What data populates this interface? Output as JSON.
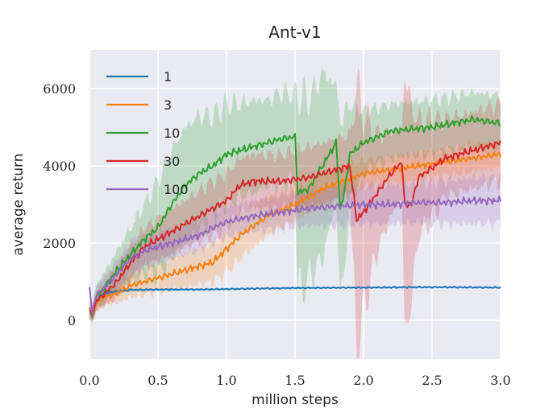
{
  "chart_data": {
    "type": "line",
    "title": "Ant-v1",
    "xlabel": "million steps",
    "ylabel": "average return",
    "xlim": [
      0,
      3.0
    ],
    "ylim": [
      -1000,
      7000
    ],
    "x_ticks": [
      0.0,
      0.5,
      1.0,
      1.5,
      2.0,
      2.5,
      3.0
    ],
    "x_tick_labels": [
      "0.0",
      "0.5",
      "1.0",
      "1.5",
      "2.0",
      "2.5",
      "3.0"
    ],
    "y_ticks": [
      0,
      2000,
      4000,
      6000
    ],
    "y_tick_labels": [
      "0",
      "2000",
      "4000",
      "6000"
    ],
    "grid": true,
    "legend_position": "top-left",
    "series": [
      {
        "name": "1",
        "color": "#1f77b4",
        "x": [
          0,
          0.02,
          0.05,
          0.1,
          0.2,
          0.3,
          0.5,
          0.8,
          1.0,
          1.5,
          2.0,
          2.5,
          3.0
        ],
        "y": [
          300,
          100,
          500,
          700,
          750,
          790,
          800,
          800,
          810,
          840,
          850,
          860,
          850
        ],
        "spread": [
          80,
          80,
          80,
          70,
          50,
          40,
          30,
          25,
          25,
          25,
          25,
          25,
          25
        ]
      },
      {
        "name": "3",
        "color": "#ff7f0e",
        "x": [
          0,
          0.02,
          0.05,
          0.1,
          0.2,
          0.3,
          0.5,
          0.7,
          0.9,
          1.0,
          1.1,
          1.3,
          1.5,
          1.7,
          2.0,
          2.3,
          2.5,
          2.8,
          3.0
        ],
        "y": [
          300,
          150,
          450,
          600,
          700,
          900,
          1100,
          1300,
          1500,
          1850,
          2200,
          2700,
          3000,
          3400,
          3800,
          3950,
          4050,
          4200,
          4300
        ],
        "spread": [
          200,
          200,
          200,
          200,
          250,
          300,
          350,
          450,
          500,
          600,
          600,
          500,
          400,
          400,
          350,
          350,
          350,
          350,
          350
        ]
      },
      {
        "name": "10",
        "color": "#2ca02c",
        "x": [
          0,
          0.02,
          0.05,
          0.1,
          0.2,
          0.3,
          0.4,
          0.5,
          0.6,
          0.7,
          0.8,
          0.9,
          1.0,
          1.1,
          1.2,
          1.3,
          1.4,
          1.5,
          1.52,
          1.6,
          1.7,
          1.8,
          1.83,
          1.86,
          1.9,
          2.0,
          2.2,
          2.5,
          2.8,
          3.0
        ],
        "y": [
          200,
          150,
          600,
          800,
          1300,
          1700,
          2100,
          2400,
          3000,
          3500,
          3800,
          4000,
          4300,
          4400,
          4500,
          4600,
          4700,
          4750,
          3300,
          3400,
          4000,
          4600,
          2900,
          3300,
          4300,
          4600,
          4900,
          5000,
          5200,
          5100
        ],
        "spread": [
          200,
          200,
          300,
          400,
          500,
          700,
          900,
          1200,
          1400,
          1500,
          1500,
          1300,
          1300,
          1200,
          1200,
          1100,
          1200,
          1100,
          2600,
          2300,
          2400,
          1500,
          2300,
          2000,
          1300,
          800,
          700,
          700,
          700,
          700
        ]
      },
      {
        "name": "30",
        "color": "#d62728",
        "x": [
          0,
          0.02,
          0.05,
          0.1,
          0.2,
          0.3,
          0.4,
          0.5,
          0.6,
          0.7,
          0.8,
          0.9,
          1.0,
          1.1,
          1.2,
          1.4,
          1.6,
          1.8,
          1.9,
          1.95,
          2.0,
          2.1,
          2.2,
          2.28,
          2.3,
          2.35,
          2.4,
          2.6,
          2.8,
          3.0
        ],
        "y": [
          250,
          150,
          500,
          650,
          1000,
          1500,
          1900,
          2100,
          2300,
          2500,
          2700,
          2900,
          3100,
          3500,
          3600,
          3600,
          3700,
          3900,
          4000,
          2600,
          2800,
          3300,
          3800,
          4100,
          3000,
          3000,
          3700,
          4200,
          4400,
          4600
        ],
        "spread": [
          200,
          200,
          250,
          300,
          400,
          450,
          500,
          550,
          600,
          600,
          650,
          700,
          700,
          700,
          700,
          700,
          800,
          800,
          800,
          3400,
          2500,
          1500,
          1100,
          900,
          3400,
          2500,
          1500,
          1000,
          1000,
          1000
        ]
      },
      {
        "name": "100",
        "color": "#9467bd",
        "x": [
          0,
          0.02,
          0.05,
          0.1,
          0.2,
          0.3,
          0.4,
          0.5,
          0.6,
          0.7,
          0.8,
          0.9,
          1.0,
          1.2,
          1.4,
          1.6,
          1.8,
          2.0,
          2.2,
          2.4,
          2.6,
          2.8,
          3.0
        ],
        "y": [
          850,
          200,
          650,
          800,
          1200,
          1600,
          1800,
          1900,
          2000,
          2100,
          2200,
          2400,
          2550,
          2700,
          2800,
          2900,
          2950,
          3000,
          3000,
          3050,
          3050,
          3100,
          3100
        ],
        "spread": [
          150,
          200,
          250,
          300,
          350,
          400,
          400,
          400,
          400,
          400,
          400,
          400,
          400,
          400,
          400,
          450,
          500,
          500,
          500,
          500,
          550,
          600,
          600
        ]
      }
    ]
  }
}
